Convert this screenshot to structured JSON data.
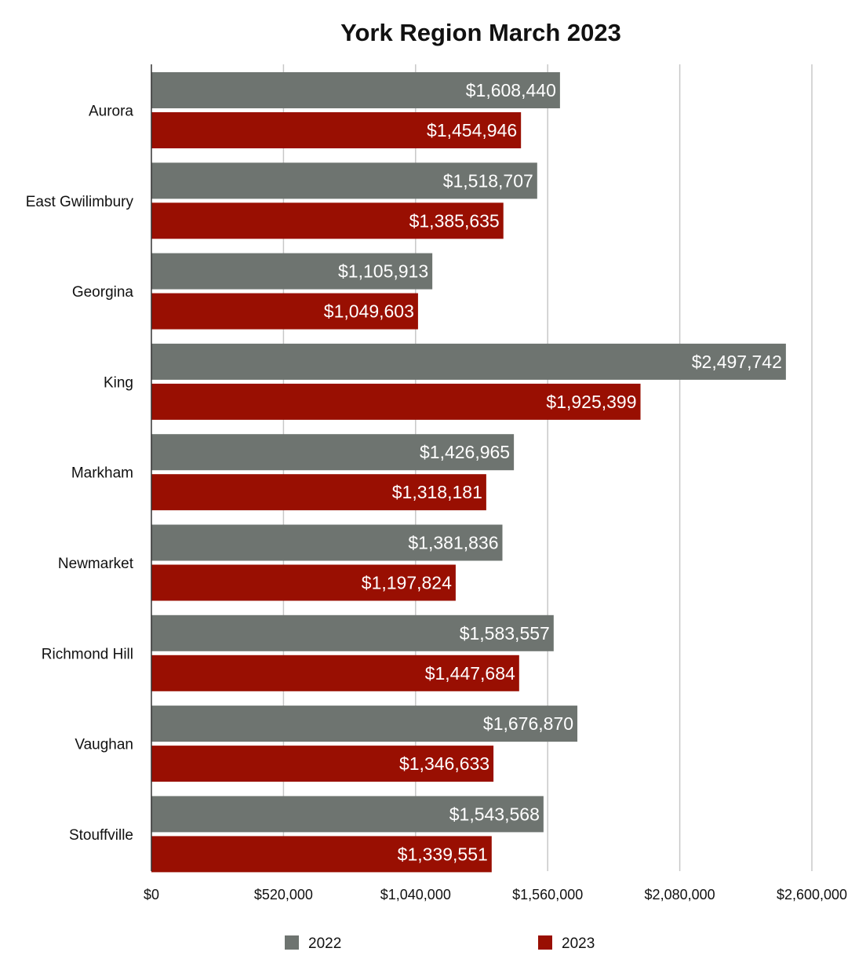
{
  "chart_data": {
    "type": "bar",
    "orientation": "horizontal",
    "title": "York Region March 2023",
    "xlabel": "",
    "ylabel": "",
    "categories": [
      "Aurora",
      "East Gwilimbury",
      "Georgina",
      "King",
      "Markham",
      "Newmarket",
      "Richmond Hill",
      "Vaughan",
      "Stouffville"
    ],
    "series": [
      {
        "name": "2022",
        "color": "#6e7470",
        "values": [
          1608440,
          1518707,
          1105913,
          2497742,
          1426965,
          1381836,
          1583557,
          1676870,
          1543568
        ],
        "labels": [
          "$1,608,440",
          "$1,518,707",
          "$1,105,913",
          "$2,497,742",
          "$1,426,965",
          "$1,381,836",
          "$1,583,557",
          "$1,676,870",
          "$1,543,568"
        ]
      },
      {
        "name": "2023",
        "color": "#990f02",
        "values": [
          1454946,
          1385635,
          1049603,
          1925399,
          1318181,
          1197824,
          1447684,
          1346633,
          1339551
        ],
        "labels": [
          "$1,454,946",
          "$1,385,635",
          "$1,049,603",
          "$1,925,399",
          "$1,318,181",
          "$1,197,824",
          "$1,447,684",
          "$1,346,633",
          "$1,339,551"
        ]
      }
    ],
    "xlim": [
      0,
      2600000
    ],
    "xticks": [
      0,
      520000,
      1040000,
      1560000,
      2080000,
      2600000
    ],
    "xtick_labels": [
      "$0",
      "$520,000",
      "$1,040,000",
      "$1,560,000",
      "$2,080,000",
      "$2,600,000"
    ],
    "grid": "vertical",
    "legend": "bottom"
  }
}
